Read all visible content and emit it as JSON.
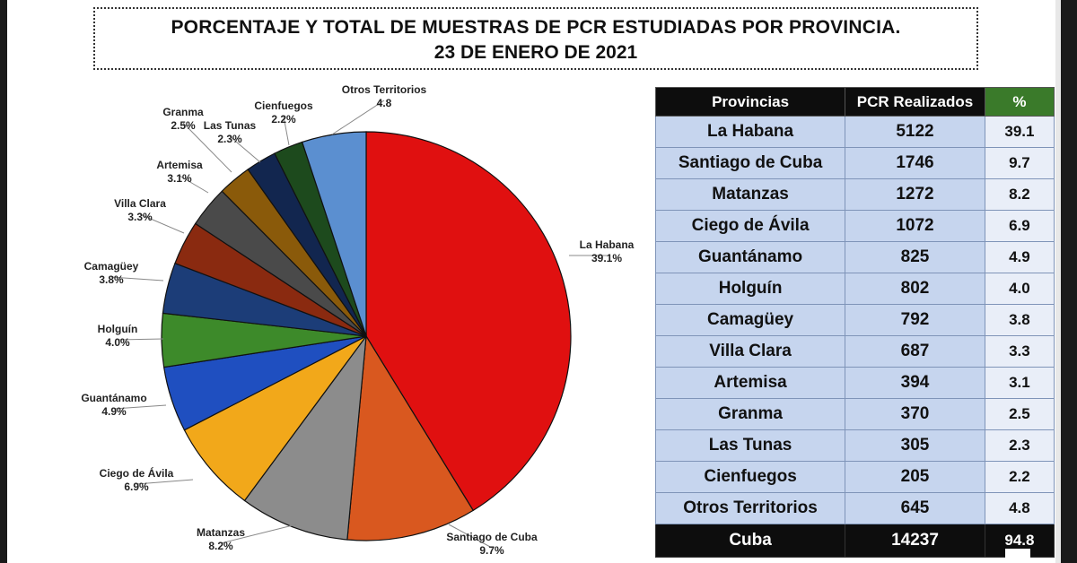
{
  "title": {
    "line1": "PORCENTAJE Y TOTAL DE MUESTRAS DE PCR ESTUDIADAS POR PROVINCIA.",
    "line2": "23 DE ENERO DE 2021"
  },
  "chart_data": {
    "type": "pie",
    "slices": [
      {
        "label": "La Habana",
        "pct_label": "39.1%",
        "value": 39.1,
        "color": "#e01010"
      },
      {
        "label": "Santiago de Cuba",
        "pct_label": "9.7%",
        "value": 9.7,
        "color": "#d9581f"
      },
      {
        "label": "Matanzas",
        "pct_label": "8.2%",
        "value": 8.2,
        "color": "#8c8c8c"
      },
      {
        "label": "Ciego de Ávila",
        "pct_label": "6.9%",
        "value": 6.9,
        "color": "#f2a81a"
      },
      {
        "label": "Guantánamo",
        "pct_label": "4.9%",
        "value": 4.9,
        "color": "#1f4fc0"
      },
      {
        "label": "Holguín",
        "pct_label": "4.0%",
        "value": 4.0,
        "color": "#3d8a2a"
      },
      {
        "label": "Camagüey",
        "pct_label": "3.8%",
        "value": 3.8,
        "color": "#1c3d78"
      },
      {
        "label": "Villa Clara",
        "pct_label": "3.3%",
        "value": 3.3,
        "color": "#8a2a10"
      },
      {
        "label": "Artemisa",
        "pct_label": "3.1%",
        "value": 3.1,
        "color": "#4a4a4a"
      },
      {
        "label": "Granma",
        "pct_label": "2.5%",
        "value": 2.5,
        "color": "#8a5a0a"
      },
      {
        "label": "Las Tunas",
        "pct_label": "2.3%",
        "value": 2.3,
        "color": "#12264f"
      },
      {
        "label": "Cienfuegos",
        "pct_label": "2.2%",
        "value": 2.2,
        "color": "#1d4a1d"
      },
      {
        "label": "Otros Territorios",
        "pct_label": "4.8",
        "value": 4.8,
        "color": "#5b8fd0"
      }
    ]
  },
  "table": {
    "headers": [
      "Provincias",
      "PCR Realizados",
      "%"
    ],
    "rows": [
      {
        "province": "La Habana",
        "pcr": "5122",
        "pct": "39.1"
      },
      {
        "province": "Santiago de Cuba",
        "pcr": "1746",
        "pct": "9.7"
      },
      {
        "province": "Matanzas",
        "pcr": "1272",
        "pct": "8.2"
      },
      {
        "province": "Ciego de Ávila",
        "pcr": "1072",
        "pct": "6.9"
      },
      {
        "province": "Guantánamo",
        "pcr": "825",
        "pct": "4.9"
      },
      {
        "province": "Holguín",
        "pcr": "802",
        "pct": "4.0"
      },
      {
        "province": "Camagüey",
        "pcr": "792",
        "pct": "3.8"
      },
      {
        "province": "Villa Clara",
        "pcr": "687",
        "pct": "3.3"
      },
      {
        "province": "Artemisa",
        "pcr": "394",
        "pct": "3.1"
      },
      {
        "province": "Granma",
        "pcr": "370",
        "pct": "2.5"
      },
      {
        "province": "Las Tunas",
        "pcr": "305",
        "pct": "2.3"
      },
      {
        "province": "Cienfuegos",
        "pcr": "205",
        "pct": "2.2"
      },
      {
        "province": "Otros Territorios",
        "pcr": "645",
        "pct": "4.8"
      }
    ],
    "total": {
      "province": "Cuba",
      "pcr": "14237",
      "pct": "94.8"
    }
  }
}
